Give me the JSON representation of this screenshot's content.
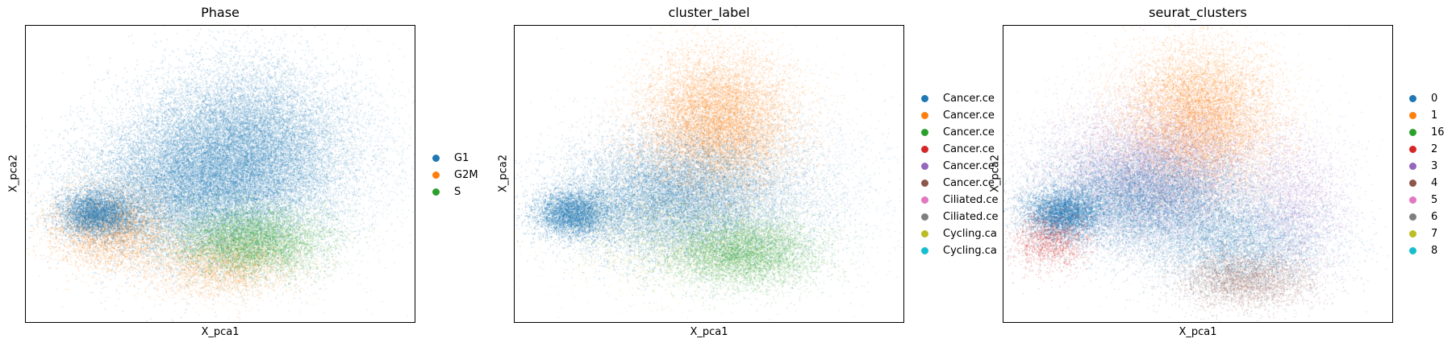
{
  "chart_data": [
    {
      "type": "scatter",
      "title": "Phase",
      "xlabel": "X_pca1",
      "ylabel": "X_pca2",
      "grid": false,
      "legend_placement": "right",
      "categories": [
        "G1",
        "G2M",
        "S"
      ],
      "colors": [
        "#1f77b4",
        "#ff7f0e",
        "#2ca02c"
      ]
    },
    {
      "type": "scatter",
      "title": "cluster_label",
      "xlabel": "X_pca1",
      "ylabel": "X_pca2",
      "grid": false,
      "legend_placement": "right",
      "categories": [
        "Cancer.ce",
        "Cancer.ce",
        "Cancer.ce",
        "Cancer.ce",
        "Cancer.ce",
        "Cancer.ce",
        "Ciliated.ce",
        "Ciliated.ce",
        "Cycling.ca",
        "Cycling.ca"
      ],
      "colors": [
        "#1f77b4",
        "#ff7f0e",
        "#2ca02c",
        "#d62728",
        "#9467bd",
        "#8c564b",
        "#e377c2",
        "#7f7f7f",
        "#bcbd22",
        "#17becf"
      ]
    },
    {
      "type": "scatter",
      "title": "seurat_clusters",
      "xlabel": "X_pca1",
      "ylabel": "X_pca2",
      "grid": false,
      "legend_placement": "right",
      "categories": [
        "0",
        "1",
        "16",
        "2",
        "3",
        "4",
        "5",
        "6",
        "7",
        "8"
      ],
      "colors": [
        "#1f77b4",
        "#ff7f0e",
        "#2ca02c",
        "#d62728",
        "#9467bd",
        "#8c564b",
        "#e377c2",
        "#7f7f7f",
        "#bcbd22",
        "#17becf"
      ]
    }
  ]
}
